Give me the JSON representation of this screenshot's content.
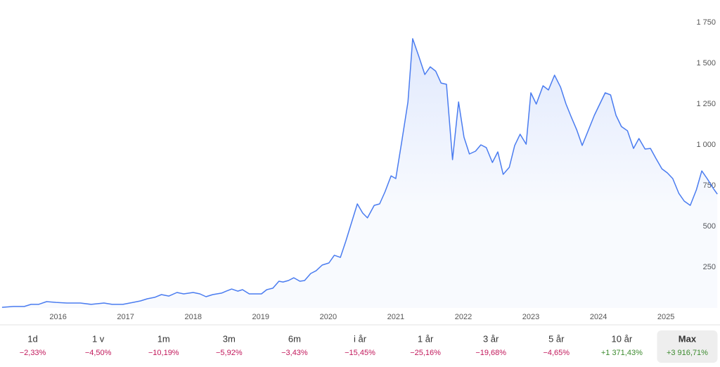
{
  "chart_data": {
    "type": "line",
    "x": [
      2015.17,
      2015.34,
      2015.5,
      2015.6,
      2015.71,
      2015.83,
      2015.97,
      2016.13,
      2016.33,
      2016.49,
      2016.68,
      2016.8,
      2016.96,
      2017.11,
      2017.22,
      2017.32,
      2017.43,
      2017.53,
      2017.64,
      2017.76,
      2017.86,
      2018.0,
      2018.1,
      2018.19,
      2018.29,
      2018.42,
      2018.49,
      2018.57,
      2018.66,
      2018.73,
      2018.83,
      2019.01,
      2019.09,
      2019.18,
      2019.27,
      2019.33,
      2019.41,
      2019.49,
      2019.58,
      2019.65,
      2019.74,
      2019.82,
      2019.91,
      2020.01,
      2020.09,
      2020.18,
      2020.26,
      2020.34,
      2020.43,
      2020.51,
      2020.58,
      2020.68,
      2020.76,
      2020.84,
      2020.93,
      2021.0,
      2021.09,
      2021.18,
      2021.25,
      2021.34,
      2021.43,
      2021.51,
      2021.59,
      2021.67,
      2021.75,
      2021.84,
      2021.93,
      2022.01,
      2022.09,
      2022.18,
      2022.26,
      2022.34,
      2022.43,
      2022.51,
      2022.59,
      2022.68,
      2022.76,
      2022.84,
      2022.93,
      2023.0,
      2023.08,
      2023.18,
      2023.26,
      2023.35,
      2023.44,
      2023.52,
      2023.6,
      2023.68,
      2023.76,
      2023.84,
      2023.94,
      2024.02,
      2024.1,
      2024.18,
      2024.26,
      2024.34,
      2024.43,
      2024.52,
      2024.6,
      2024.69,
      2024.77,
      2024.85,
      2024.94,
      2025.02,
      2025.1,
      2025.19,
      2025.27,
      2025.36,
      2025.45,
      2025.53,
      2025.61,
      2025.7,
      2025.76
    ],
    "series": [
      {
        "color": "#4a7cf0",
        "values": [
          4,
          9,
          9,
          22,
          22,
          39,
          34,
          30,
          30,
          22,
          30,
          22,
          22,
          34,
          43,
          56,
          65,
          82,
          73,
          95,
          86,
          95,
          86,
          69,
          82,
          91,
          103,
          116,
          103,
          112,
          86,
          86,
          112,
          121,
          164,
          159,
          168,
          185,
          164,
          168,
          211,
          228,
          263,
          276,
          323,
          310,
          409,
          517,
          638,
          582,
          552,
          629,
          638,
          711,
          810,
          793,
          1026,
          1263,
          1651,
          1543,
          1431,
          1478,
          1452,
          1379,
          1371,
          909,
          1263,
          1047,
          944,
          961,
          1000,
          983,
          892,
          957,
          819,
          862,
          996,
          1065,
          1004,
          1319,
          1250,
          1362,
          1336,
          1427,
          1353,
          1250,
          1168,
          1090,
          996,
          1078,
          1181,
          1250,
          1319,
          1306,
          1181,
          1112,
          1086,
          978,
          1039,
          974,
          978,
          918,
          853,
          828,
          793,
          703,
          655,
          629,
          724,
          840,
          793,
          733,
          698
        ]
      }
    ],
    "xlim": [
      2015.14,
      2025.8
    ],
    "xticks": [
      2016,
      2017,
      2018,
      2019,
      2020,
      2021,
      2022,
      2023,
      2024,
      2025
    ],
    "ylim": [
      0,
      1750
    ],
    "yticks": [
      250,
      500,
      750,
      {
        "value": 1000,
        "label": "1 000"
      },
      {
        "value": 1250,
        "label": "1 250"
      },
      {
        "value": 1500,
        "label": "1 500"
      },
      {
        "value": 1750,
        "label": "1 750"
      }
    ]
  },
  "periods": [
    {
      "label": "1d",
      "change": "−2,33%",
      "color": "#c2185b"
    },
    {
      "label": "1 v",
      "change": "−4,50%",
      "color": "#c2185b"
    },
    {
      "label": "1m",
      "change": "−10,19%",
      "color": "#c2185b"
    },
    {
      "label": "3m",
      "change": "−5,92%",
      "color": "#c2185b"
    },
    {
      "label": "6m",
      "change": "−3,43%",
      "color": "#c2185b"
    },
    {
      "label": "i år",
      "change": "−15,45%",
      "color": "#c2185b"
    },
    {
      "label": "1 år",
      "change": "−25,16%",
      "color": "#c2185b"
    },
    {
      "label": "3 år",
      "change": "−19,68%",
      "color": "#c2185b"
    },
    {
      "label": "5 år",
      "change": "−4,65%",
      "color": "#c2185b"
    },
    {
      "label": "10 år",
      "change": "+1 371,43%",
      "color": "#3d8b2f"
    },
    {
      "label": "Max",
      "change": "+3 916,71%",
      "color": "#3d8b2f",
      "selected": true
    }
  ]
}
